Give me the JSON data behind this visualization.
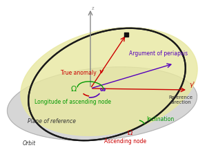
{
  "bg_color": "#ffffff",
  "ref_plane_color": "#c0c0c0",
  "ref_plane_alpha": 0.65,
  "orbital_plane_color": "#e8e8a0",
  "orbital_plane_alpha": 0.8,
  "orbit_color": "#1a1a1a",
  "orbit_lw": 1.6,
  "z_axis_color": "#888888",
  "ref_dir_color": "#cc0000",
  "true_anomaly_color": "#cc0000",
  "arg_periapsis_color": "#5500bb",
  "lon_asc_node_color": "#009900",
  "inclination_color": "#009900",
  "asc_node_color": "#cc0000",
  "satellite_color": "#111111",
  "label_fontsize": 5.8,
  "small_fontsize": 5.5,
  "labels": {
    "true_anomaly": "True anomaly",
    "nu_symbol": "v",
    "arg_periapsis": "Argument of periapsis",
    "omega_symbol": "ω",
    "lon_asc_node": "Longitude of ascending node",
    "big_omega_symbol": "Ω",
    "plane_of_ref": "Plane of reference",
    "orbit": "Orbit",
    "reference_direction": "Reference\ndirection",
    "gamma_symbol": "γ'",
    "inclination": "Inclination",
    "ascending_node": "Ascending node",
    "asc_node_symbol": "Ω",
    "z_label": "z"
  }
}
